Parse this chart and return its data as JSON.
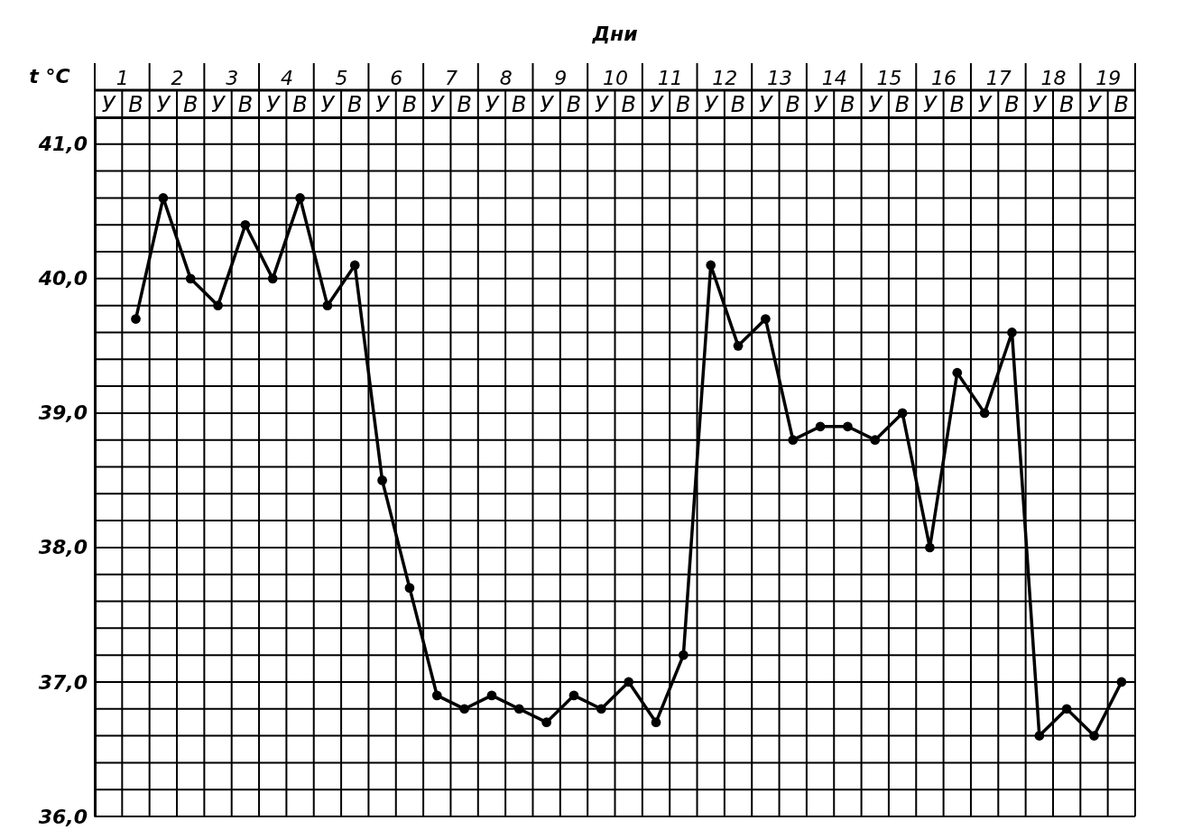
{
  "chart_data": {
    "type": "line",
    "xlabel": "Дни",
    "ylabel": "t °C",
    "categories": [
      "У",
      "В",
      "У",
      "В",
      "У",
      "В",
      "У",
      "В",
      "У",
      "В",
      "У",
      "В",
      "У",
      "В",
      "У",
      "В",
      "У",
      "В",
      "У",
      "В",
      "У",
      "В",
      "У",
      "В",
      "У",
      "В",
      "У",
      "В",
      "У",
      "В",
      "У",
      "В",
      "У",
      "В",
      "У",
      "В",
      "У",
      "В"
    ],
    "series": [
      {
        "color": "#000000",
        "values": [
          null,
          39.7,
          40.6,
          40.0,
          39.8,
          40.4,
          40.0,
          40.6,
          39.8,
          40.1,
          38.5,
          37.7,
          36.9,
          36.8,
          36.9,
          36.8,
          36.7,
          36.9,
          36.8,
          37.0,
          36.7,
          37.2,
          40.1,
          39.5,
          39.7,
          38.8,
          38.9,
          38.9,
          38.8,
          39.0,
          38.0,
          39.3,
          39.0,
          39.6,
          36.6,
          36.8,
          36.6,
          37.0
        ]
      }
    ],
    "ylim": [
      36,
      41.2
    ],
    "yticks": [
      {
        "value": 36,
        "label": "36,0"
      },
      {
        "value": 36.2,
        "label": null
      },
      {
        "value": 36.4,
        "label": null
      },
      {
        "value": 36.6,
        "label": null
      },
      {
        "value": 36.8,
        "label": null
      },
      {
        "value": 37,
        "label": "37,0"
      },
      {
        "value": 37.2,
        "label": null
      },
      {
        "value": 37.4,
        "label": null
      },
      {
        "value": 37.6,
        "label": null
      },
      {
        "value": 37.8,
        "label": null
      },
      {
        "value": 38,
        "label": "38,0"
      },
      {
        "value": 38.2,
        "label": null
      },
      {
        "value": 38.4,
        "label": null
      },
      {
        "value": 38.6,
        "label": null
      },
      {
        "value": 38.8,
        "label": null
      },
      {
        "value": 39,
        "label": "39,0"
      },
      {
        "value": 39.2,
        "label": null
      },
      {
        "value": 39.4,
        "label": null
      },
      {
        "value": 39.6,
        "label": null
      },
      {
        "value": 39.8,
        "label": null
      },
      {
        "value": 40,
        "label": "40,0"
      },
      {
        "value": 40.2,
        "label": null
      },
      {
        "value": 40.4,
        "label": null
      },
      {
        "value": 40.6,
        "label": null
      },
      {
        "value": 40.8,
        "label": null
      },
      {
        "value": 41,
        "label": "41,0"
      },
      {
        "value": 41.2,
        "label": null
      }
    ],
    "x2lim": [
      0,
      19
    ],
    "x2ticks": [
      {
        "value": 0.5,
        "label": "1"
      },
      {
        "value": 1.5,
        "label": "2"
      },
      {
        "value": 2.5,
        "label": "3"
      },
      {
        "value": 3.5,
        "label": "4"
      },
      {
        "value": 4.5,
        "label": "5"
      },
      {
        "value": 5.5,
        "label": "6"
      },
      {
        "value": 6.5,
        "label": "7"
      },
      {
        "value": 7.5,
        "label": "8"
      },
      {
        "value": 8.5,
        "label": "9"
      },
      {
        "value": 9.5,
        "label": "10"
      },
      {
        "value": 10.5,
        "label": "11"
      },
      {
        "value": 11.5,
        "label": "12"
      },
      {
        "value": 12.5,
        "label": "13"
      },
      {
        "value": 13.5,
        "label": "14"
      },
      {
        "value": 14.5,
        "label": "15"
      },
      {
        "value": 15.5,
        "label": "16"
      },
      {
        "value": 16.5,
        "label": "17"
      },
      {
        "value": 17.5,
        "label": "18"
      },
      {
        "value": 18.5,
        "label": "19"
      }
    ],
    "grid": true,
    "marker": "circle",
    "line_style": "solid"
  }
}
